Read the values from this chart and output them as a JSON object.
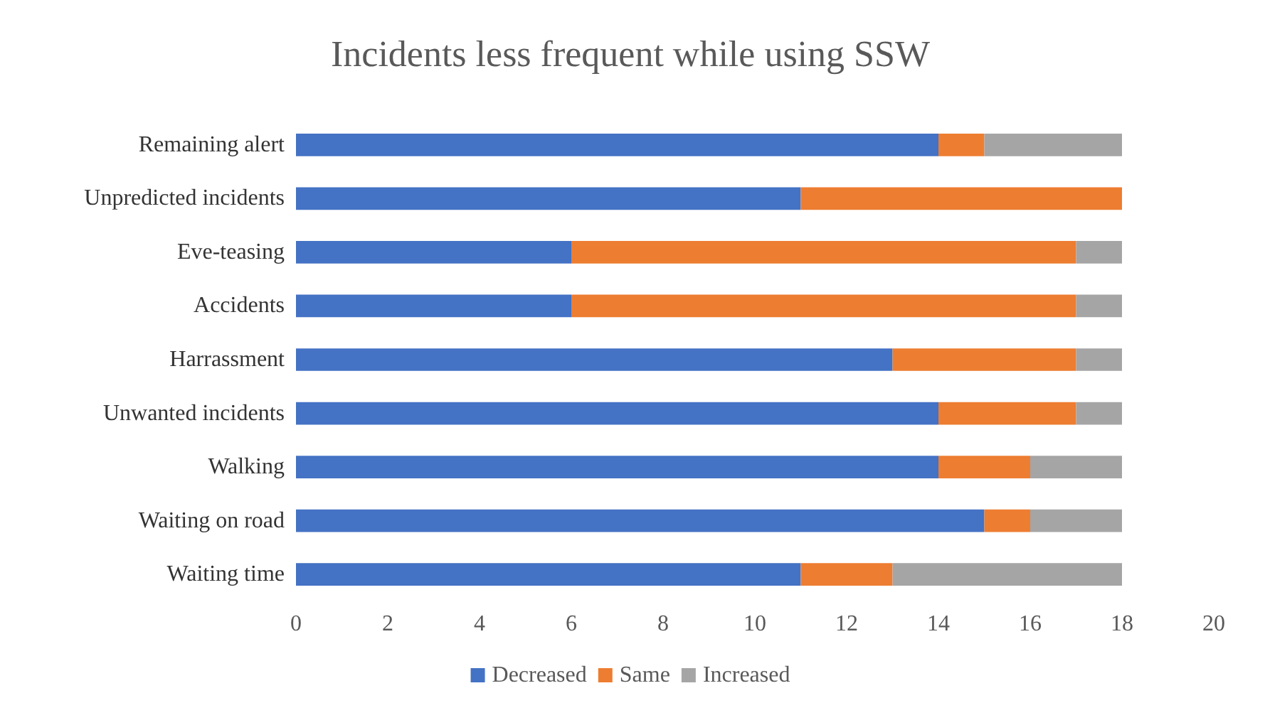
{
  "chart_data": {
    "type": "bar",
    "orientation": "horizontal",
    "stacked": true,
    "title": "Incidents less frequent while using SSW",
    "categories": [
      "Remaining alert",
      "Unpredicted incidents",
      "Eve-teasing",
      "Accidents",
      "Harrassment",
      "Unwanted incidents",
      "Walking",
      "Waiting on road",
      "Waiting time"
    ],
    "series": [
      {
        "name": "Decreased",
        "color": "#4472c4",
        "values": [
          14,
          11,
          6,
          6,
          13,
          14,
          14,
          15,
          11
        ]
      },
      {
        "name": "Same",
        "color": "#ed7d31",
        "values": [
          1,
          7,
          11,
          11,
          4,
          3,
          2,
          1,
          2
        ]
      },
      {
        "name": "Increased",
        "color": "#a5a5a5",
        "values": [
          3,
          0,
          1,
          1,
          1,
          1,
          2,
          2,
          5
        ]
      }
    ],
    "xlim": [
      0,
      20
    ],
    "xticks": [
      0,
      2,
      4,
      6,
      8,
      10,
      12,
      14,
      16,
      18,
      20
    ],
    "grid": false,
    "legend": "bottom"
  }
}
